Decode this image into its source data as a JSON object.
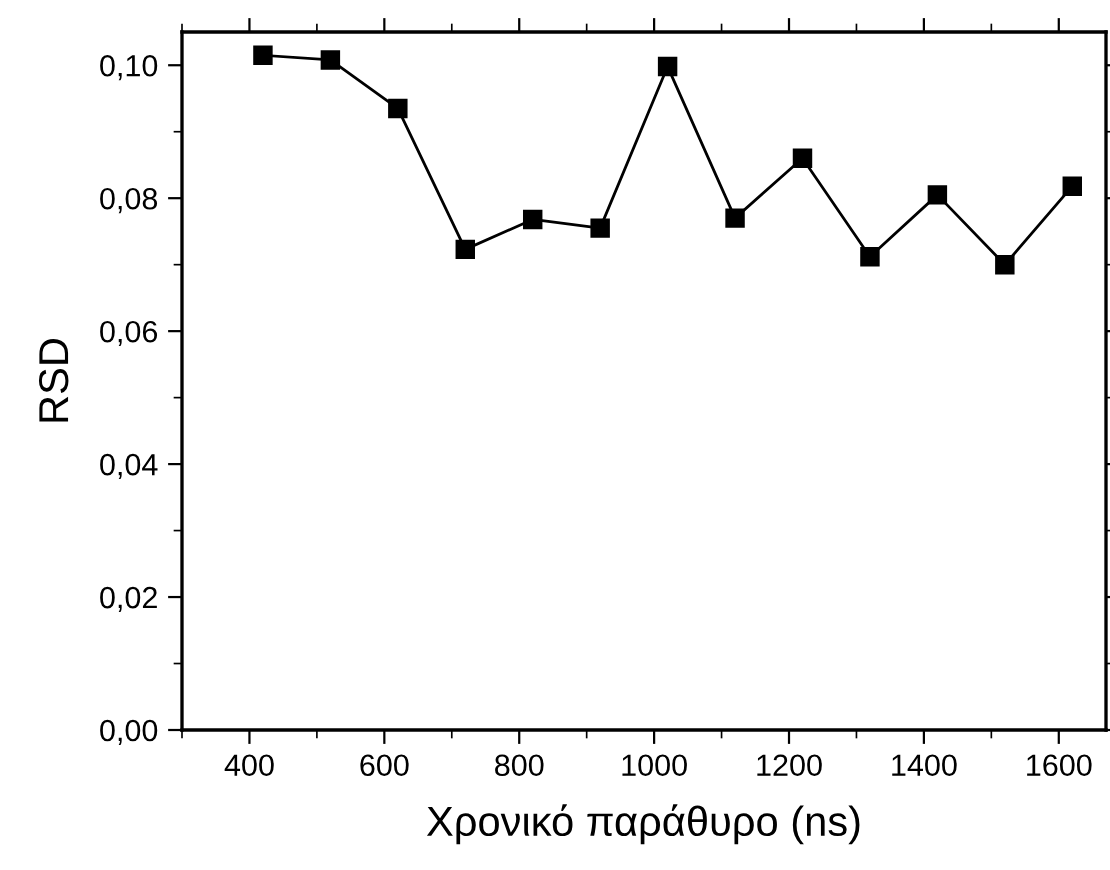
{
  "chart_data": {
    "type": "line",
    "xlabel": "Χρονικό παράθυρο (ns)",
    "ylabel": "RSD",
    "x": [
      420,
      520,
      620,
      720,
      820,
      920,
      1020,
      1120,
      1220,
      1320,
      1420,
      1520,
      1620
    ],
    "series": [
      {
        "color": "#000000",
        "values": [
          0.1015,
          0.1008,
          0.0935,
          0.0723,
          0.0768,
          0.0755,
          0.0998,
          0.077,
          0.086,
          0.0712,
          0.0805,
          0.07,
          0.0818
        ]
      }
    ],
    "marker": "square",
    "line_style": "solid",
    "grid": false,
    "legend": false,
    "xlim": [
      300,
      1670
    ],
    "xticks": [
      400,
      600,
      800,
      1000,
      1200,
      1400,
      1600
    ],
    "ylim": [
      0,
      0.105
    ],
    "yticks": [
      {
        "value": 0,
        "label": "0,00"
      },
      {
        "value": 0.02,
        "label": "0,02"
      },
      {
        "value": 0.04,
        "label": "0,04"
      },
      {
        "value": 0.06,
        "label": "0,06"
      },
      {
        "value": 0.08,
        "label": "0,08"
      },
      {
        "value": 0.1,
        "label": "0,10"
      }
    ]
  }
}
